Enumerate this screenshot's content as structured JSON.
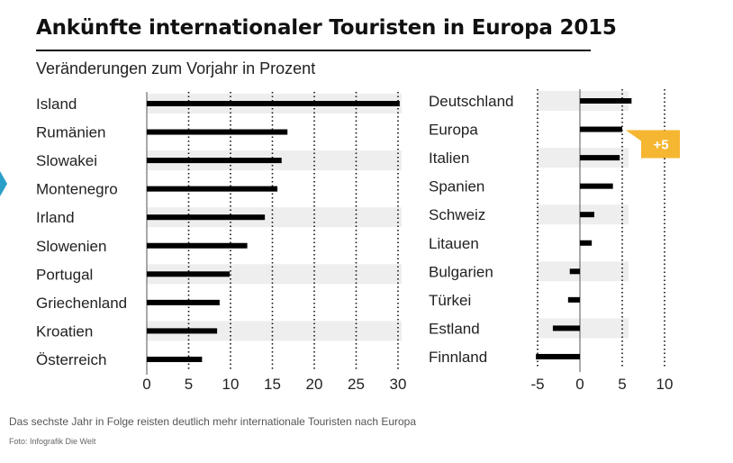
{
  "title": "Ankünfte internationaler Touristen in Europa 2015",
  "subtitle": "Veränderungen zum Vorjahr in Prozent",
  "caption": "Das sechste Jahr in Folge reisten deutlich mehr internationale Touristen nach Europa",
  "source": "Foto: Infografik Die Welt",
  "colors": {
    "bar": "#000000",
    "band": "#eeeeee",
    "badge": "#f5b631",
    "badge_text": "#ffffff",
    "side_tab": "#2aa0c8"
  },
  "chart_data": [
    {
      "type": "bar",
      "orientation": "horizontal",
      "categories": [
        "Island",
        "Rumänien",
        "Slowakei",
        "Montenegro",
        "Irland",
        "Slowenien",
        "Portugal",
        "Griechenland",
        "Kroatien",
        "Österreich"
      ],
      "values": [
        30.2,
        16.8,
        16.1,
        15.6,
        14.1,
        12.0,
        9.9,
        8.7,
        8.4,
        6.6
      ],
      "xlim": [
        0,
        30
      ],
      "xticks": [
        0,
        5,
        10,
        15,
        20,
        25,
        30
      ],
      "tick_labels": [
        "0",
        "5",
        "10",
        "15",
        "20",
        "25",
        "30"
      ],
      "grid": "dotted"
    },
    {
      "type": "bar",
      "orientation": "horizontal",
      "categories": [
        "Deutschland",
        "Europa",
        "Italien",
        "Spanien",
        "Schweiz",
        "Litauen",
        "Bulgarien",
        "Türkei",
        "Estland",
        "Finnland"
      ],
      "values": [
        6.1,
        5.0,
        4.7,
        3.9,
        1.7,
        1.4,
        -1.2,
        -1.4,
        -3.2,
        -5.2
      ],
      "xlim": [
        -5,
        10
      ],
      "xticks": [
        -5,
        0,
        5,
        10
      ],
      "tick_labels": [
        "-5",
        "0",
        "5",
        "10"
      ],
      "grid": "dotted",
      "annotation": {
        "category": "Europa",
        "label": "+5"
      }
    }
  ]
}
